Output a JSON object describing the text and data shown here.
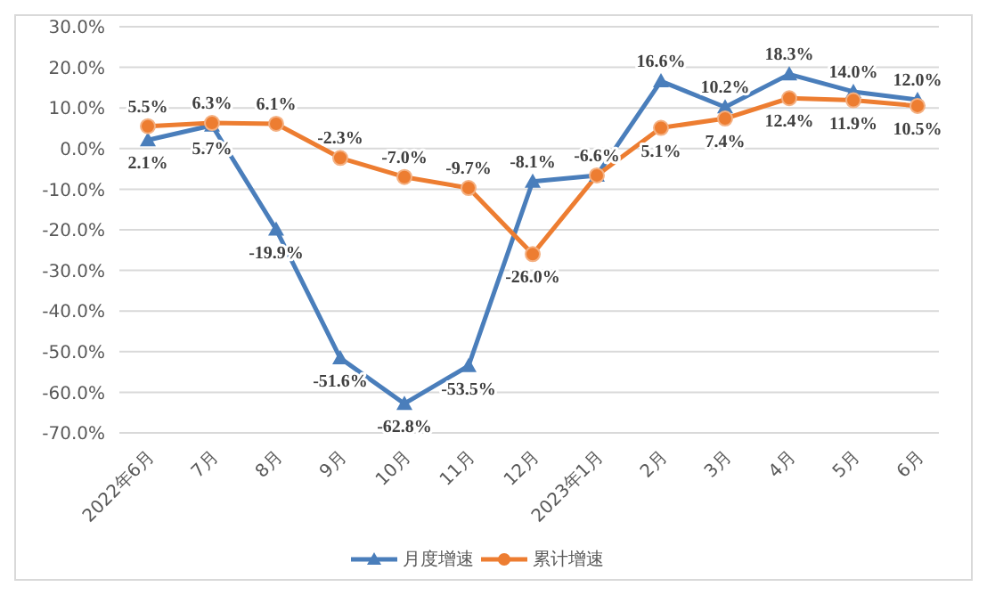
{
  "chart_data": {
    "type": "line",
    "categories": [
      "2022年6月",
      "7月",
      "8月",
      "9月",
      "10月",
      "11月",
      "12月",
      "2023年1月",
      "2月",
      "3月",
      "4月",
      "5月",
      "6月"
    ],
    "series": [
      {
        "name": "月度增速",
        "color": "#4a7ebb",
        "marker": "triangle",
        "values": [
          2.1,
          5.7,
          -19.9,
          -51.6,
          -62.8,
          -53.5,
          -8.1,
          -6.6,
          16.6,
          10.2,
          18.3,
          14.0,
          12.0
        ],
        "value_labels": [
          "2.1%",
          "5.7%",
          "-19.9%",
          "-51.6%",
          "-62.8%",
          "-53.5%",
          "-8.1%",
          "-6.6%",
          "16.6%",
          "10.2%",
          "18.3%",
          "14.0%",
          "12.0%"
        ]
      },
      {
        "name": "累计增速",
        "color": "#ed7d31",
        "marker": "circle",
        "values": [
          5.5,
          6.3,
          6.1,
          -2.3,
          -7.0,
          -9.7,
          -26.0,
          -6.6,
          5.1,
          7.4,
          12.4,
          11.9,
          10.5
        ],
        "value_labels": [
          "5.5%",
          "6.3%",
          "6.1%",
          "-2.3%",
          "-7.0%",
          "-9.7%",
          "-26.0%",
          null,
          "5.1%",
          "7.4%",
          "12.4%",
          "11.9%",
          "10.5%"
        ]
      }
    ],
    "ylim": [
      -70,
      30
    ],
    "yticks": [
      {
        "value": -70,
        "label": "-70.0%"
      },
      {
        "value": -60,
        "label": "-60.0%"
      },
      {
        "value": -50,
        "label": "-50.0%"
      },
      {
        "value": -40,
        "label": "-40.0%"
      },
      {
        "value": -30,
        "label": "-30.0%"
      },
      {
        "value": -20,
        "label": "-20.0%"
      },
      {
        "value": -10,
        "label": "-10.0%"
      },
      {
        "value": 0,
        "label": "0.0%"
      },
      {
        "value": 10,
        "label": "10.0%"
      },
      {
        "value": 20,
        "label": "20.0%"
      },
      {
        "value": 30,
        "label": "30.0%"
      }
    ],
    "grid": "y",
    "legend": "bottom",
    "line_style": "solid"
  }
}
